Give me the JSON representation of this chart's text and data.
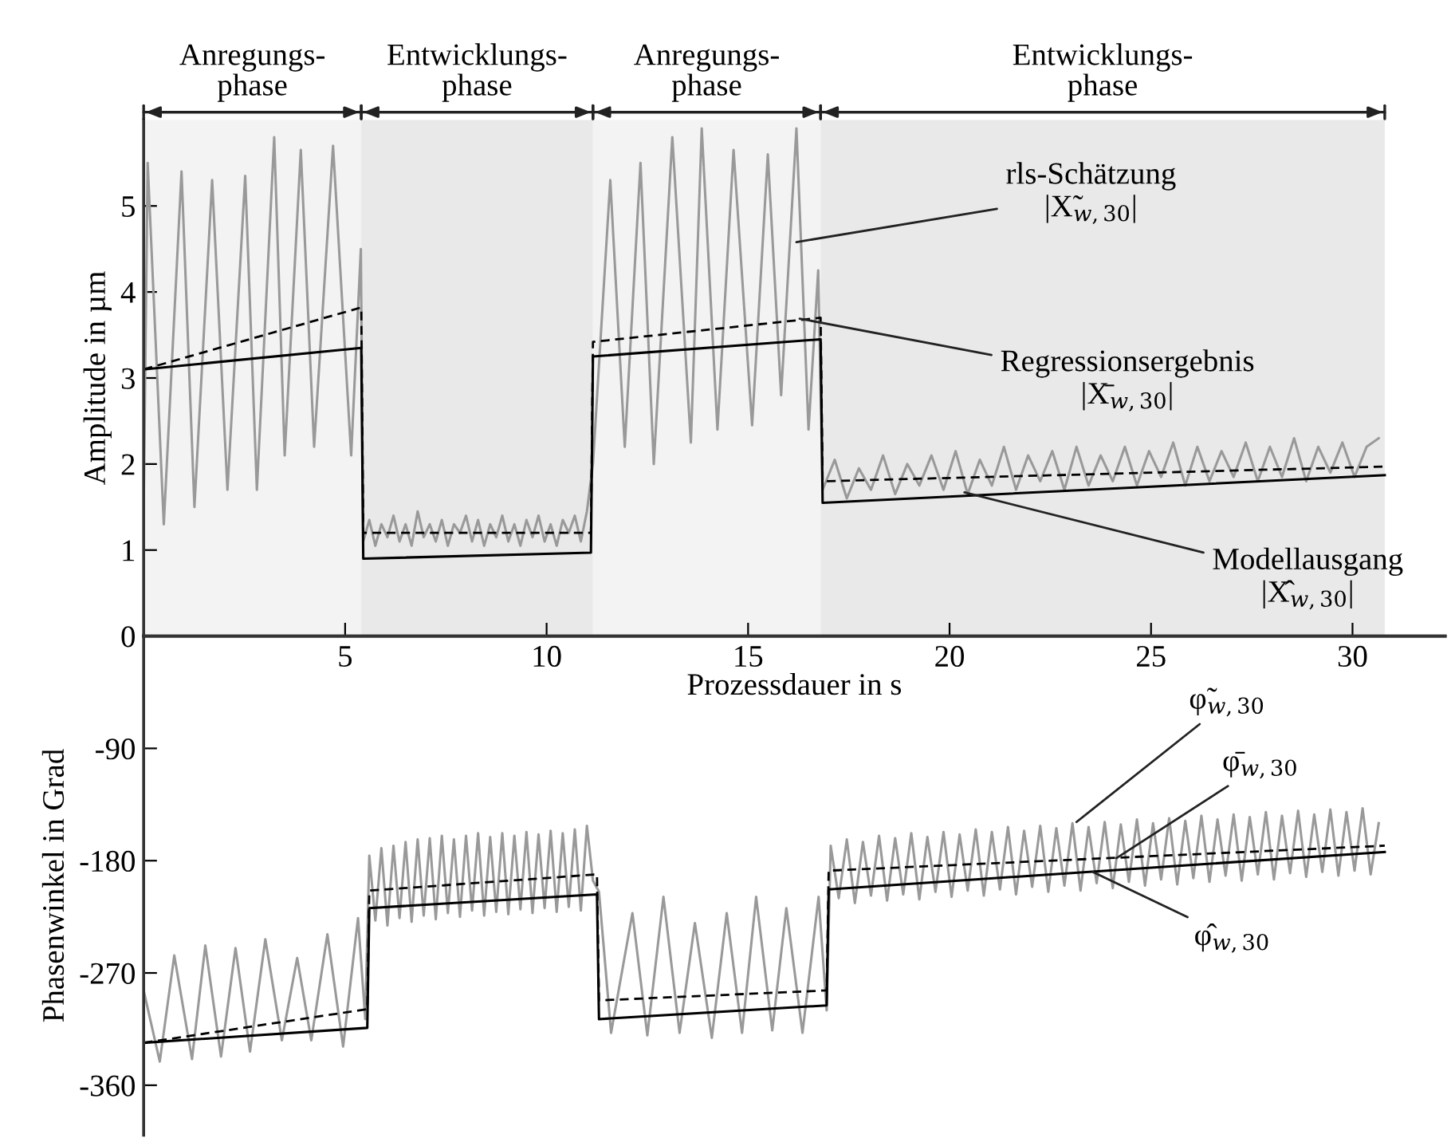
{
  "chart_data": [
    {
      "type": "line",
      "xlabel": "Prozessdauer in s",
      "ylabel": "Amplitude in µm",
      "xlim": [
        0,
        32.3
      ],
      "xticks": [
        5,
        10,
        15,
        20,
        25,
        30
      ],
      "ylim": [
        0,
        6
      ],
      "yticks": [
        0,
        1,
        2,
        3,
        4,
        5
      ],
      "bands": [
        {
          "axis": "x",
          "from": 0,
          "to": 5.4,
          "label": "Anregungs-\nphase",
          "color": "#f3f3f3"
        },
        {
          "axis": "x",
          "from": 5.4,
          "to": 11.15,
          "label": "Entwicklungs-\nphase",
          "color": "#e9e9e9"
        },
        {
          "axis": "x",
          "from": 11.15,
          "to": 16.8,
          "label": "Anregungs-\nphase",
          "color": "#f3f3f3"
        },
        {
          "axis": "x",
          "from": 16.8,
          "to": 30.8,
          "label": "Entwicklungs-\nphase",
          "color": "#e9e9e9"
        }
      ],
      "annotations": [
        {
          "text": "rls-Schätzung\n|X̃$_{w,30}$|",
          "x": 16.2,
          "y": 4.58
        },
        {
          "text": "Regressionsergebnis\n|X̄$_{w,30}$|",
          "x": 16.28,
          "y": 3.69
        },
        {
          "text": "Modellausgang\n|X̂$_{w,30}$|",
          "x": 20.37,
          "y": 1.67
        }
      ],
      "series": [
        {
          "color": "#999999",
          "line_style": "solid",
          "x": [
            0,
            0.1,
            0.5,
            0.94,
            1.26,
            1.7,
            2.08,
            2.52,
            2.81,
            3.24,
            3.5,
            3.9,
            4.23,
            4.7,
            5.15,
            5.39,
            5.45,
            5.6,
            5.75,
            5.9,
            6.05,
            6.2,
            6.35,
            6.5,
            6.65,
            6.8,
            6.95,
            7.1,
            7.25,
            7.4,
            7.55,
            7.7,
            7.85,
            8.0,
            8.15,
            8.3,
            8.45,
            8.6,
            8.75,
            8.9,
            9.05,
            9.2,
            9.35,
            9.5,
            9.65,
            9.8,
            9.95,
            10.1,
            10.25,
            10.4,
            10.55,
            10.7,
            10.85,
            11.0,
            11.15,
            11.58,
            11.94,
            12.33,
            12.66,
            13.12,
            13.58,
            13.85,
            14.24,
            14.64,
            15.1,
            15.49,
            15.82,
            16.2,
            16.5,
            16.74,
            16.85,
            17.15,
            17.45,
            17.75,
            18.05,
            18.35,
            18.65,
            18.95,
            19.25,
            19.55,
            19.85,
            20.15,
            20.45,
            20.75,
            21.05,
            21.35,
            21.65,
            21.95,
            22.25,
            22.55,
            22.85,
            23.15,
            23.45,
            23.75,
            24.05,
            24.35,
            24.65,
            24.95,
            25.25,
            25.55,
            25.85,
            26.15,
            26.45,
            26.75,
            27.05,
            27.35,
            27.65,
            27.95,
            28.25,
            28.55,
            28.85,
            29.15,
            29.45,
            29.75,
            30.05,
            30.35,
            30.65
          ],
          "values": [
            1.46,
            5.5,
            1.3,
            5.4,
            1.5,
            5.3,
            1.7,
            5.35,
            1.7,
            5.8,
            2.1,
            5.65,
            2.2,
            5.7,
            2.1,
            4.5,
            1.1,
            1.35,
            1.05,
            1.3,
            1.15,
            1.4,
            1.1,
            1.3,
            1.05,
            1.45,
            1.15,
            1.3,
            1.1,
            1.35,
            1.05,
            1.3,
            1.2,
            1.4,
            1.1,
            1.35,
            1.05,
            1.3,
            1.15,
            1.4,
            1.1,
            1.3,
            1.05,
            1.35,
            1.15,
            1.4,
            1.1,
            1.3,
            1.05,
            1.35,
            1.2,
            1.4,
            1.1,
            1.45,
            2.0,
            5.3,
            2.2,
            5.5,
            2.0,
            5.8,
            2.25,
            5.9,
            2.4,
            5.65,
            2.45,
            5.6,
            2.8,
            5.9,
            2.4,
            4.25,
            1.7,
            2.05,
            1.6,
            1.95,
            1.7,
            2.1,
            1.65,
            2.0,
            1.75,
            2.1,
            1.7,
            2.15,
            1.65,
            2.05,
            1.75,
            2.2,
            1.7,
            2.1,
            1.8,
            2.15,
            1.7,
            2.2,
            1.75,
            2.1,
            1.8,
            2.2,
            1.75,
            2.15,
            1.85,
            2.25,
            1.75,
            2.2,
            1.8,
            2.15,
            1.85,
            2.25,
            1.8,
            2.2,
            1.85,
            2.3,
            1.8,
            2.2,
            1.9,
            2.25,
            1.85,
            2.2,
            2.3
          ]
        },
        {
          "color": "#000000",
          "line_style": "dashed",
          "x": [
            0,
            5.4,
            5.45,
            11.1,
            11.15,
            16.8,
            16.85,
            30.8
          ],
          "values": [
            3.1,
            3.82,
            1.2,
            1.2,
            3.42,
            3.7,
            1.8,
            1.97
          ]
        },
        {
          "color": "#000000",
          "line_style": "solid",
          "x": [
            0,
            5.4,
            5.45,
            11.1,
            11.15,
            16.8,
            16.85,
            30.8
          ],
          "values": [
            3.1,
            3.35,
            0.9,
            0.97,
            3.25,
            3.45,
            1.55,
            1.87
          ]
        }
      ]
    },
    {
      "type": "line",
      "ylabel": "Phasenwinkel in Grad",
      "xlim": [
        0,
        32.3
      ],
      "ylim": [
        -400,
        0
      ],
      "yticks": [
        {
          "value": -90,
          "label": "-90"
        },
        {
          "value": -180,
          "label": "-180"
        },
        {
          "value": -270,
          "label": "-270"
        },
        {
          "value": -360,
          "label": "-360"
        }
      ],
      "tick_labels": "y",
      "annotations": [
        {
          "text": "φ̃$_{w,30}$",
          "x": 23.15,
          "y": -149
        },
        {
          "text": "φ̄$_{w,30}$",
          "x": 24.14,
          "y": -178
        },
        {
          "text": "φ̂$_{w,30}$",
          "x": 23.55,
          "y": -189
        }
      ],
      "series": [
        {
          "color": "#999999",
          "line_style": "solid",
          "x": [
            0,
            0.4,
            0.76,
            1.2,
            1.53,
            1.92,
            2.28,
            2.64,
            3.02,
            3.43,
            3.81,
            4.16,
            4.56,
            4.95,
            5.32,
            5.5,
            5.6,
            5.75,
            5.9,
            6.05,
            6.2,
            6.35,
            6.5,
            6.65,
            6.8,
            6.95,
            7.1,
            7.25,
            7.4,
            7.55,
            7.7,
            7.85,
            8.0,
            8.15,
            8.3,
            8.45,
            8.6,
            8.75,
            8.9,
            9.05,
            9.2,
            9.35,
            9.5,
            9.65,
            9.8,
            9.95,
            10.1,
            10.25,
            10.4,
            10.55,
            10.7,
            10.85,
            11.0,
            11.15,
            11.3,
            11.6,
            12.13,
            12.5,
            12.9,
            13.3,
            13.68,
            14.1,
            14.47,
            14.85,
            15.2,
            15.6,
            15.95,
            16.35,
            16.75,
            16.95,
            17.05,
            17.25,
            17.45,
            17.65,
            17.85,
            18.05,
            18.25,
            18.45,
            18.65,
            18.85,
            19.05,
            19.25,
            19.45,
            19.65,
            19.85,
            20.05,
            20.25,
            20.45,
            20.65,
            20.85,
            21.05,
            21.25,
            21.45,
            21.65,
            21.85,
            22.05,
            22.25,
            22.45,
            22.65,
            22.85,
            23.05,
            23.25,
            23.45,
            23.65,
            23.85,
            24.05,
            24.25,
            24.45,
            24.65,
            24.85,
            25.05,
            25.25,
            25.45,
            25.65,
            25.85,
            26.05,
            26.25,
            26.45,
            26.65,
            26.85,
            27.05,
            27.25,
            27.45,
            27.65,
            27.85,
            28.05,
            28.25,
            28.45,
            28.65,
            28.85,
            29.05,
            29.25,
            29.45,
            29.65,
            29.85,
            30.05,
            30.25,
            30.45,
            30.65
          ],
          "values": [
            -284,
            -341,
            -256,
            -339,
            -248,
            -337,
            -250,
            -333,
            -243,
            -324,
            -258,
            -324,
            -239,
            -329,
            -226,
            -307,
            -176,
            -228,
            -170,
            -232,
            -168,
            -226,
            -165,
            -229,
            -163,
            -224,
            -162,
            -227,
            -160,
            -222,
            -163,
            -225,
            -160,
            -220,
            -158,
            -224,
            -161,
            -221,
            -158,
            -223,
            -160,
            -219,
            -157,
            -222,
            -159,
            -218,
            -156,
            -221,
            -158,
            -217,
            -155,
            -220,
            -152,
            -196,
            -205,
            -318,
            -222,
            -320,
            -209,
            -318,
            -230,
            -322,
            -222,
            -318,
            -209,
            -316,
            -218,
            -318,
            -209,
            -300,
            -168,
            -210,
            -163,
            -214,
            -165,
            -208,
            -160,
            -212,
            -162,
            -207,
            -158,
            -211,
            -161,
            -205,
            -157,
            -209,
            -159,
            -204,
            -155,
            -208,
            -157,
            -203,
            -153,
            -207,
            -156,
            -201,
            -152,
            -205,
            -154,
            -200,
            -150,
            -204,
            -153,
            -198,
            -149,
            -202,
            -151,
            -197,
            -147,
            -200,
            -150,
            -195,
            -146,
            -199,
            -148,
            -194,
            -144,
            -197,
            -147,
            -192,
            -143,
            -196,
            -145,
            -191,
            -141,
            -195,
            -144,
            -190,
            -140,
            -193,
            -143,
            -189,
            -139,
            -192,
            -141,
            -188,
            -138,
            -191,
            -150
          ]
        },
        {
          "color": "#000000",
          "line_style": "dashed",
          "x": [
            0,
            5.55,
            5.6,
            11.25,
            11.3,
            16.95,
            17.0,
            30.8
          ],
          "values": [
            -326,
            -299,
            -204,
            -191,
            -292,
            -284,
            -188,
            -168
          ]
        },
        {
          "color": "#000000",
          "line_style": "solid",
          "x": [
            0,
            5.55,
            5.6,
            11.25,
            11.3,
            16.95,
            17.0,
            30.8
          ],
          "values": [
            -326,
            -314,
            -218,
            -207,
            -307,
            -296,
            -203,
            -173
          ]
        }
      ]
    }
  ]
}
